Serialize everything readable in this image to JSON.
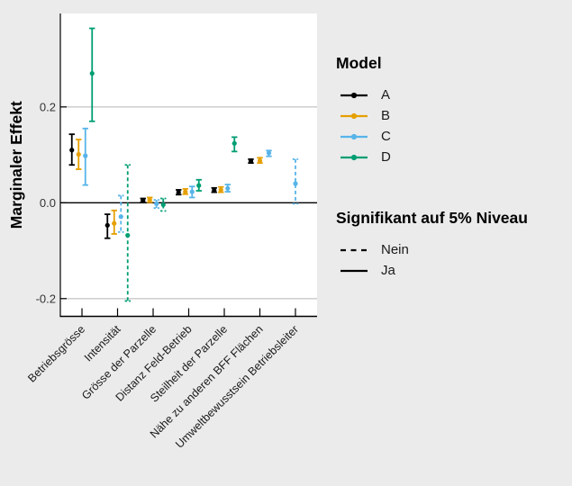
{
  "chart_data": {
    "type": "pointrange",
    "ylabel": "Marginaler Effekt",
    "xlabel": "",
    "ylim": [
      -0.237,
      0.395
    ],
    "yticks": [
      {
        "value": 0.2,
        "label": "0.2"
      },
      {
        "value": 0.0,
        "label": "0.0"
      },
      {
        "value": -0.2,
        "label": "-0.2"
      }
    ],
    "gridlines": [
      0.2,
      -0.2
    ],
    "hline": 0.0,
    "grid": "horizontal-only",
    "legend_position": "right",
    "categories": [
      "Betriebsgrösse",
      "Intensität",
      "Grösse der Parzelle",
      "Distanz Feld-Betrieb",
      "Steilheit der Parzelle",
      "Nähe zu anderen BFF Flächen",
      "Umweltbewusstsein Betriebsleiter"
    ],
    "models": [
      {
        "name": "A",
        "color": "#000000"
      },
      {
        "name": "B",
        "color": "#E69F00"
      },
      {
        "name": "C",
        "color": "#56B4E9"
      },
      {
        "name": "D",
        "color": "#009E73"
      }
    ],
    "points": [
      {
        "category": 0,
        "model": "A",
        "value": 0.11,
        "lo": 0.079,
        "hi": 0.143,
        "significant": true
      },
      {
        "category": 0,
        "model": "B",
        "value": 0.101,
        "lo": 0.07,
        "hi": 0.132,
        "significant": true
      },
      {
        "category": 0,
        "model": "C",
        "value": 0.098,
        "lo": 0.037,
        "hi": 0.155,
        "significant": true
      },
      {
        "category": 0,
        "model": "D",
        "value": 0.27,
        "lo": 0.17,
        "hi": 0.364,
        "significant": true
      },
      {
        "category": 1,
        "model": "A",
        "value": -0.047,
        "lo": -0.074,
        "hi": -0.024,
        "significant": true
      },
      {
        "category": 1,
        "model": "B",
        "value": -0.043,
        "lo": -0.065,
        "hi": -0.016,
        "significant": true
      },
      {
        "category": 1,
        "model": "C",
        "value": -0.029,
        "lo": -0.061,
        "hi": 0.015,
        "significant": false
      },
      {
        "category": 1,
        "model": "D",
        "value": -0.068,
        "lo": -0.205,
        "hi": 0.079,
        "significant": false
      },
      {
        "category": 2,
        "model": "A",
        "value": 0.005,
        "lo": 0.001,
        "hi": 0.009,
        "significant": true
      },
      {
        "category": 2,
        "model": "B",
        "value": 0.006,
        "lo": 0.001,
        "hi": 0.011,
        "significant": true
      },
      {
        "category": 2,
        "model": "C",
        "value": -0.002,
        "lo": -0.011,
        "hi": 0.006,
        "significant": false
      },
      {
        "category": 2,
        "model": "D",
        "value": -0.004,
        "lo": -0.017,
        "hi": 0.009,
        "significant": false
      },
      {
        "category": 3,
        "model": "A",
        "value": 0.022,
        "lo": 0.017,
        "hi": 0.027,
        "significant": true
      },
      {
        "category": 3,
        "model": "B",
        "value": 0.023,
        "lo": 0.018,
        "hi": 0.029,
        "significant": true
      },
      {
        "category": 3,
        "model": "C",
        "value": 0.023,
        "lo": 0.011,
        "hi": 0.034,
        "significant": true
      },
      {
        "category": 3,
        "model": "D",
        "value": 0.036,
        "lo": 0.025,
        "hi": 0.048,
        "significant": true
      },
      {
        "category": 4,
        "model": "A",
        "value": 0.026,
        "lo": 0.022,
        "hi": 0.031,
        "significant": true
      },
      {
        "category": 4,
        "model": "B",
        "value": 0.027,
        "lo": 0.022,
        "hi": 0.033,
        "significant": true
      },
      {
        "category": 4,
        "model": "C",
        "value": 0.03,
        "lo": 0.023,
        "hi": 0.038,
        "significant": true
      },
      {
        "category": 4,
        "model": "D",
        "value": 0.124,
        "lo": 0.107,
        "hi": 0.137,
        "significant": true
      },
      {
        "category": 5,
        "model": "A",
        "value": 0.087,
        "lo": 0.083,
        "hi": 0.091,
        "significant": true
      },
      {
        "category": 5,
        "model": "B",
        "value": 0.088,
        "lo": 0.083,
        "hi": 0.094,
        "significant": true
      },
      {
        "category": 5,
        "model": "C",
        "value": 0.104,
        "lo": 0.097,
        "hi": 0.109,
        "significant": true
      },
      {
        "category": 6,
        "model": "C",
        "value": 0.04,
        "lo": -0.002,
        "hi": 0.091,
        "significant": false
      }
    ],
    "colors": {
      "figure_background": "#EBEBEB",
      "panel_background": "#FFFFFF",
      "gridline": "#C9C9C9",
      "axis_line": "#000000",
      "tick_label": "#333333",
      "category_label": "#1a1a1a"
    }
  },
  "legend": {
    "model_title": "Model",
    "sig_title": "Signifikant auf 5% Niveau",
    "sig_entries": [
      {
        "label": "Nein",
        "significant": false
      },
      {
        "label": "Ja",
        "significant": true
      }
    ]
  }
}
